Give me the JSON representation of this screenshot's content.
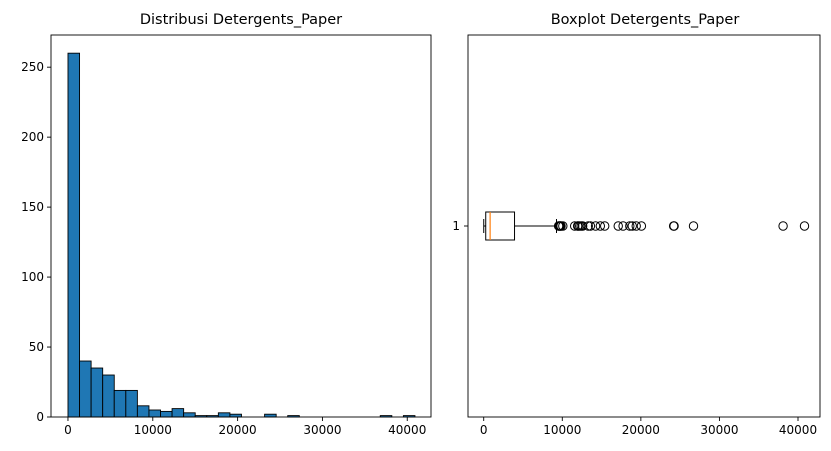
{
  "chart_data": [
    {
      "type": "bar",
      "subtype": "histogram",
      "title": "Distribusi Detergents_Paper",
      "xlabel": "",
      "ylabel": "",
      "xlim": [
        -2000,
        42800
      ],
      "ylim": [
        0,
        273
      ],
      "x_ticks": [
        0,
        10000,
        20000,
        30000,
        40000
      ],
      "x_tick_labels": [
        "0",
        "10000",
        "20000",
        "30000",
        "40000"
      ],
      "y_ticks": [
        0,
        50,
        100,
        150,
        200,
        250
      ],
      "y_tick_labels": [
        "0",
        "50",
        "100",
        "150",
        "200",
        "250"
      ],
      "bin_start": 3,
      "bin_width": 1363.5,
      "counts": [
        260,
        40,
        35,
        30,
        19,
        19,
        8,
        5,
        4,
        6,
        3,
        1,
        1,
        3,
        2,
        0,
        0,
        2,
        0,
        1,
        0,
        0,
        0,
        0,
        0,
        0,
        0,
        1,
        0,
        1
      ],
      "bar_color": "#1f77b4",
      "edge_color": "#000000",
      "grid": false
    },
    {
      "type": "boxplot",
      "orientation": "horizontal",
      "title": "Boxplot Detergents_Paper",
      "xlabel": "",
      "ylabel": "",
      "xlim": [
        -2000,
        42800
      ],
      "x_ticks": [
        0,
        10000,
        20000,
        30000,
        40000
      ],
      "x_tick_labels": [
        "0",
        "10000",
        "20000",
        "30000",
        "40000"
      ],
      "y_tick_labels": [
        "1"
      ],
      "stats": {
        "whisker_low": 3,
        "q1": 257,
        "median": 816,
        "q3": 3922,
        "whisker_high": 9265
      },
      "outliers": [
        9529,
        9600,
        9700,
        9806,
        9836,
        10069,
        11577,
        11950,
        12038,
        12218,
        12408,
        12591,
        13308,
        13583,
        14235,
        14841,
        15400,
        17120,
        17740,
        18594,
        18906,
        19410,
        20070,
        24171,
        24231,
        26701,
        38102,
        40827
      ],
      "median_color": "#ff7f0e",
      "grid": false
    }
  ]
}
